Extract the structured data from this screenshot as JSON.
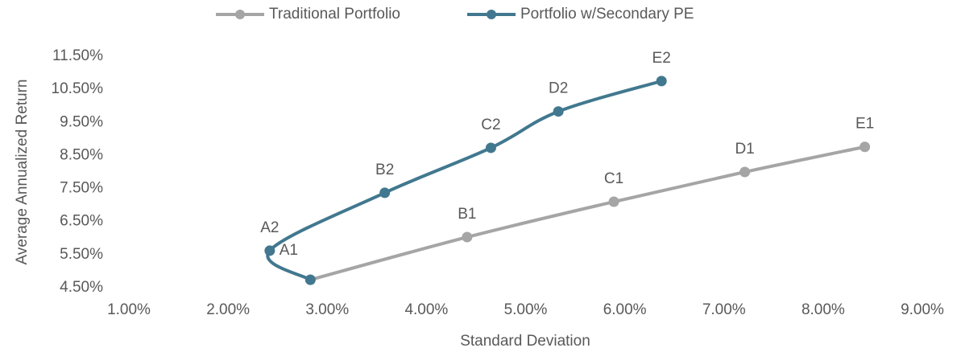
{
  "chart_data": {
    "type": "scatter-smooth",
    "xlabel": "Standard Deviation",
    "ylabel": "Average Annualized Return",
    "xlim": [
      1,
      9
    ],
    "xticks": [
      {
        "value": 1,
        "label": "1.00%"
      },
      {
        "value": 2,
        "label": "2.00%"
      },
      {
        "value": 3,
        "label": "3.00%"
      },
      {
        "value": 4,
        "label": "4.00%"
      },
      {
        "value": 5,
        "label": "5.00%"
      },
      {
        "value": 6,
        "label": "6.00%"
      },
      {
        "value": 7,
        "label": "7.00%"
      },
      {
        "value": 8,
        "label": "8.00%"
      },
      {
        "value": 9,
        "label": "9.00%"
      }
    ],
    "ylim": [
      4.5,
      11.5
    ],
    "yticks": [
      {
        "value": 4.5,
        "label": "4.50%"
      },
      {
        "value": 5.5,
        "label": "5.50%"
      },
      {
        "value": 6.5,
        "label": "6.50%"
      },
      {
        "value": 7.5,
        "label": "7.50%"
      },
      {
        "value": 8.5,
        "label": "8.50%"
      },
      {
        "value": 9.5,
        "label": "9.50%"
      },
      {
        "value": 10.5,
        "label": "10.50%"
      },
      {
        "value": 11.5,
        "label": "11.50%"
      }
    ],
    "grid": false,
    "legend": "top",
    "series": [
      {
        "name": "Traditional Portfolio",
        "color": "#a5a5a5",
        "x": [
          2.83,
          4.41,
          5.89,
          7.21,
          8.42
        ],
        "y": [
          4.74,
          6.03,
          7.1,
          8.0,
          8.76
        ],
        "point_labels": [
          "A1",
          "B1",
          "C1",
          "D1",
          "E1"
        ]
      },
      {
        "name": "Portfolio w/Secondary PE",
        "color": "#41788f",
        "x": [
          2.83,
          2.42,
          3.58,
          4.65,
          5.33,
          6.37
        ],
        "y": [
          4.74,
          5.62,
          7.37,
          8.73,
          9.83,
          10.75
        ],
        "point_labels": [
          null,
          "A2",
          "B2",
          "C2",
          "D2",
          "E2"
        ]
      }
    ]
  }
}
